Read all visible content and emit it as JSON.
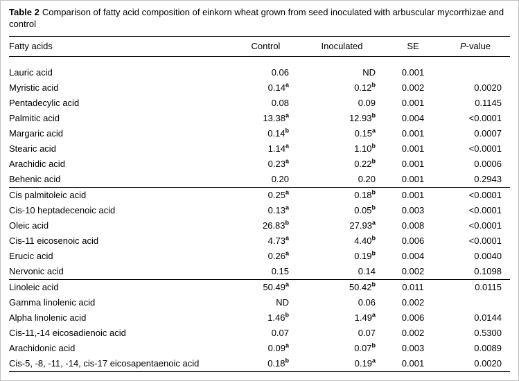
{
  "caption": {
    "label": "Table 2",
    "text": "Comparison of fatty acid composition of einkorn wheat grown from seed inoculated with arbuscular mycorrhizae and control"
  },
  "columns": [
    {
      "label": "Fatty acids"
    },
    {
      "label": "Control"
    },
    {
      "label": "Inoculated"
    },
    {
      "label": "SE"
    },
    {
      "italic": "P",
      "rest": "-value"
    }
  ],
  "abbreviations": {
    "not_detected": "ND"
  },
  "groups": [
    [
      {
        "name": "Lauric acid",
        "control": "0.06",
        "control_sup": "",
        "inoculated": "ND",
        "inoculated_sup": "",
        "se": "0.001",
        "p": ""
      },
      {
        "name": "Myristic acid",
        "control": "0.14",
        "control_sup": "a",
        "inoculated": "0.12",
        "inoculated_sup": "b",
        "se": "0.002",
        "p": "0.0020"
      },
      {
        "name": "Pentadecylic acid",
        "control": "0.08",
        "control_sup": "",
        "inoculated": "0.09",
        "inoculated_sup": "",
        "se": "0.001",
        "p": "0.1145"
      },
      {
        "name": "Palmitic acid",
        "control": "13.38",
        "control_sup": "a",
        "inoculated": "12.93",
        "inoculated_sup": "b",
        "se": "0.004",
        "p": "<0.0001"
      },
      {
        "name": "Margaric acid",
        "control": "0.14",
        "control_sup": "b",
        "inoculated": "0.15",
        "inoculated_sup": "a",
        "se": "0.001",
        "p": "0.0007"
      },
      {
        "name": "Stearic acid",
        "control": "1.14",
        "control_sup": "a",
        "inoculated": "1.10",
        "inoculated_sup": "b",
        "se": "0.001",
        "p": "<0.0001"
      },
      {
        "name": "Arachidic acid",
        "control": "0.23",
        "control_sup": "a",
        "inoculated": "0.22",
        "inoculated_sup": "b",
        "se": "0.001",
        "p": "0.0006"
      },
      {
        "name": "Behenic acid",
        "control": "0.20",
        "control_sup": "",
        "inoculated": "0.20",
        "inoculated_sup": "",
        "se": "0.001",
        "p": "0.2943"
      }
    ],
    [
      {
        "name": "Cis palmitoleic acid",
        "control": "0.25",
        "control_sup": "a",
        "inoculated": "0.18",
        "inoculated_sup": "b",
        "se": "0.001",
        "p": "<0.0001"
      },
      {
        "name": "Cis-10 heptadecenoic acid",
        "control": "0.13",
        "control_sup": "a",
        "inoculated": "0.05",
        "inoculated_sup": "b",
        "se": "0.003",
        "p": "<0.0001"
      },
      {
        "name": "Oleic acid",
        "control": "26.83",
        "control_sup": "b",
        "inoculated": "27.93",
        "inoculated_sup": "a",
        "se": "0.008",
        "p": "<0.0001"
      },
      {
        "name": "Cis-11 eicosenoic acid",
        "control": "4.73",
        "control_sup": "a",
        "inoculated": "4.40",
        "inoculated_sup": "b",
        "se": "0.006",
        "p": "<0.0001"
      },
      {
        "name": "Erucic acid",
        "control": "0.26",
        "control_sup": "a",
        "inoculated": "0.19",
        "inoculated_sup": "b",
        "se": "0.004",
        "p": "0.0040"
      },
      {
        "name": "Nervonic acid",
        "control": "0.15",
        "control_sup": "",
        "inoculated": "0.14",
        "inoculated_sup": "",
        "se": "0.002",
        "p": "0.1098"
      }
    ],
    [
      {
        "name": "Linoleic acid",
        "control": "50.49",
        "control_sup": "a",
        "inoculated": "50.42",
        "inoculated_sup": "b",
        "se": "0.011",
        "p": "0.0115"
      },
      {
        "name": "Gamma linolenic acid",
        "control": "ND",
        "control_sup": "",
        "inoculated": "0.06",
        "inoculated_sup": "",
        "se": "0.002",
        "p": ""
      },
      {
        "name": "Alpha linolenic acid",
        "control": "1.46",
        "control_sup": "b",
        "inoculated": "1.49",
        "inoculated_sup": "a",
        "se": "0.006",
        "p": "0.0144"
      },
      {
        "name": "Cis-11,-14 eicosadienoic acid",
        "control": "0.07",
        "control_sup": "",
        "inoculated": "0.07",
        "inoculated_sup": "",
        "se": "0.002",
        "p": "0.5300"
      },
      {
        "name": "Arachidonic acid",
        "control": "0.09",
        "control_sup": "a",
        "inoculated": "0.07",
        "inoculated_sup": "b",
        "se": "0.003",
        "p": "0.0089"
      },
      {
        "name": "Cis-5, -8, -11, -14, cis-17 eicosapentaenoic acid",
        "control": "0.18",
        "control_sup": "b",
        "inoculated": "0.19",
        "inoculated_sup": "a",
        "se": "0.001",
        "p": "0.0020"
      }
    ]
  ]
}
